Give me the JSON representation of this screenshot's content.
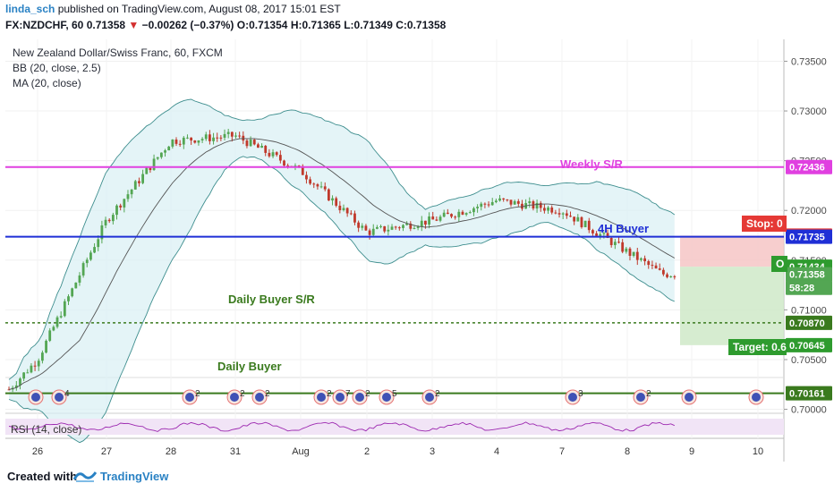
{
  "header": {
    "author": "linda_sch",
    "published": " published on TradingView.com, August 08, 2017 15:01 EST",
    "symbol": "FX:NZDCHF, 60",
    "last": "0.71358",
    "arrow": "▼",
    "change": "−0.00262 (−0.37%)",
    "ohlc_o": "O:0.71354",
    "ohlc_h": "H:0.71365",
    "ohlc_l": "L:0.71349",
    "ohlc_c": "C:0.71358"
  },
  "legend": {
    "title": "New Zealand Dollar/Swiss Franc, 60, FXCM",
    "bb": "BB (20, close, 2.5)",
    "ma": "MA (20, close)"
  },
  "annotations": {
    "weekly": "Weekly S/R",
    "buyer_4h": "4H Buyer",
    "daily_buyer_sr": "Daily Buyer S/R",
    "daily_buyer": "Daily Buyer",
    "stop": "Stop: 0",
    "target": "Target: 0.6",
    "open": "O"
  },
  "rsi_label": "RSI (14, close)",
  "footer": {
    "created": "Created with",
    "brand": "TradingView"
  },
  "colors": {
    "up": "#53a653",
    "down": "#c0392b",
    "bb_fill": "#d8f0f4",
    "bb_line": "#3e8e8e",
    "ma": "#555555",
    "weekly": "#e040e0",
    "h4": "#1f2fd6",
    "daily": "#3a7a1e",
    "stop_zone": "#f6c6c6",
    "target_zone": "#cfe9c8"
  },
  "chart_data": {
    "type": "candlestick",
    "symbol": "FX:NZDCHF",
    "timeframe": "60",
    "ylim": [
      0.6996,
      0.7372
    ],
    "y_ticks": [
      "0.73500",
      "0.73000",
      "0.72500",
      "0.72000",
      "0.71500",
      "0.71000",
      "0.70500",
      "0.70000"
    ],
    "x_ticks": [
      "26",
      "27",
      "28",
      "31",
      "Aug",
      "2",
      "3",
      "4",
      "7",
      "8",
      "9",
      "10"
    ],
    "price_series": {
      "dates": [
        "Jul 26",
        "Jul 27",
        "Jul 28",
        "Jul 31",
        "Aug 1",
        "Aug 2",
        "Aug 3",
        "Aug 4",
        "Aug 7",
        "Aug 8"
      ],
      "approx_close": [
        0.705,
        0.719,
        0.727,
        0.7275,
        0.724,
        0.7178,
        0.719,
        0.721,
        0.72,
        0.7136
      ]
    },
    "levels": [
      {
        "name": "Weekly S/R",
        "price": 0.72436
      },
      {
        "name": "4H Buyer",
        "price": 0.71735
      },
      {
        "name": "Daily Buyer S/R",
        "price": 0.7087
      },
      {
        "name": "Daily Buyer",
        "price": 0.70161
      }
    ],
    "position": {
      "stop": 0.71747,
      "entry": 0.71434,
      "target": 0.70645
    },
    "price_labels": [
      {
        "text": "0.72436",
        "price": 0.72436,
        "color": "#e040e0"
      },
      {
        "text": "0.71747",
        "price": 0.71747,
        "color": "#e53935"
      },
      {
        "text": "0.71735",
        "price": 0.71735,
        "color": "#1f2fd6"
      },
      {
        "text": "0.71434",
        "price": 0.71434,
        "color": "#2e9b2e"
      },
      {
        "text": "0.71358",
        "price": 0.71358,
        "color": "#53a653"
      },
      {
        "text": "58:28",
        "price": 0.71222,
        "color": "#53a653"
      },
      {
        "text": "0.70870",
        "price": 0.7087,
        "color": "#3a7a1e"
      },
      {
        "text": "0.70645",
        "price": 0.70645,
        "color": "#2e9b2e"
      },
      {
        "text": "0.70161",
        "price": 0.70161,
        "color": "#3a7a1e"
      }
    ],
    "events": [
      "4",
      "2",
      "2",
      "2",
      "2",
      "7",
      "2",
      "5",
      "2",
      "3",
      "2"
    ],
    "indicators": [
      "BB (20, close, 2.5)",
      "MA (20, close)",
      "RSI (14, close)"
    ]
  }
}
